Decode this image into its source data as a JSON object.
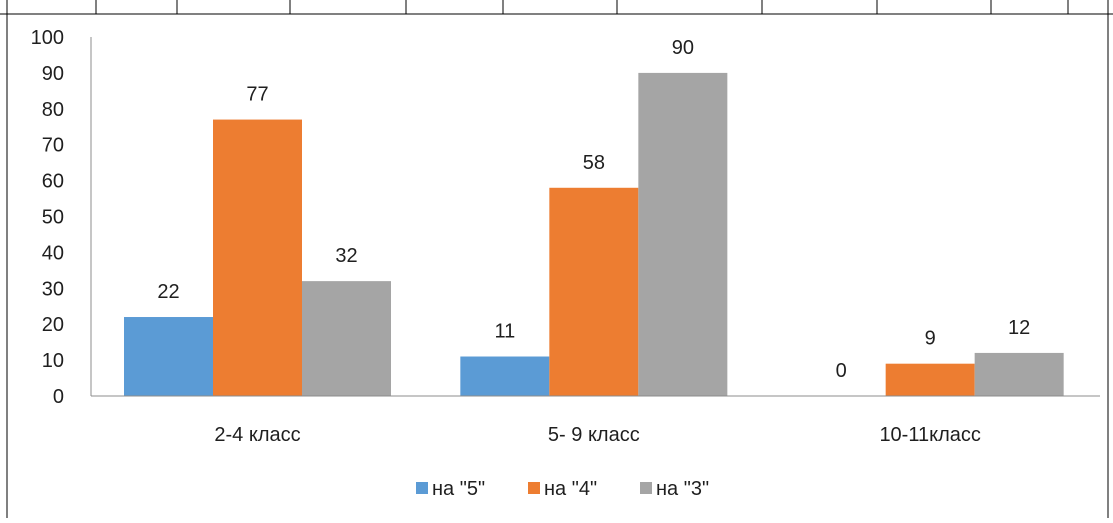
{
  "colors": {
    "series": [
      "#5b9bd5",
      "#ed7d31",
      "#a5a5a5"
    ],
    "axis": "#8c8c8c",
    "text": "#1f1f1f",
    "frame": "#000000"
  },
  "chart_data": {
    "type": "bar",
    "title": "",
    "xlabel": "",
    "ylabel": "",
    "categories": [
      "2-4 класс",
      "5- 9 класс",
      "10-11класс"
    ],
    "series": [
      {
        "name": "на \"5\"",
        "values": [
          22,
          11,
          0
        ]
      },
      {
        "name": "на \"4\"",
        "values": [
          77,
          58,
          9
        ]
      },
      {
        "name": "на \"3\"",
        "values": [
          32,
          90,
          12
        ]
      }
    ],
    "ylim": [
      0,
      100
    ],
    "yticks": [
      0,
      10,
      20,
      30,
      40,
      50,
      60,
      70,
      80,
      90,
      100
    ],
    "grid": false,
    "data_labels": true,
    "legend_position": "bottom"
  }
}
